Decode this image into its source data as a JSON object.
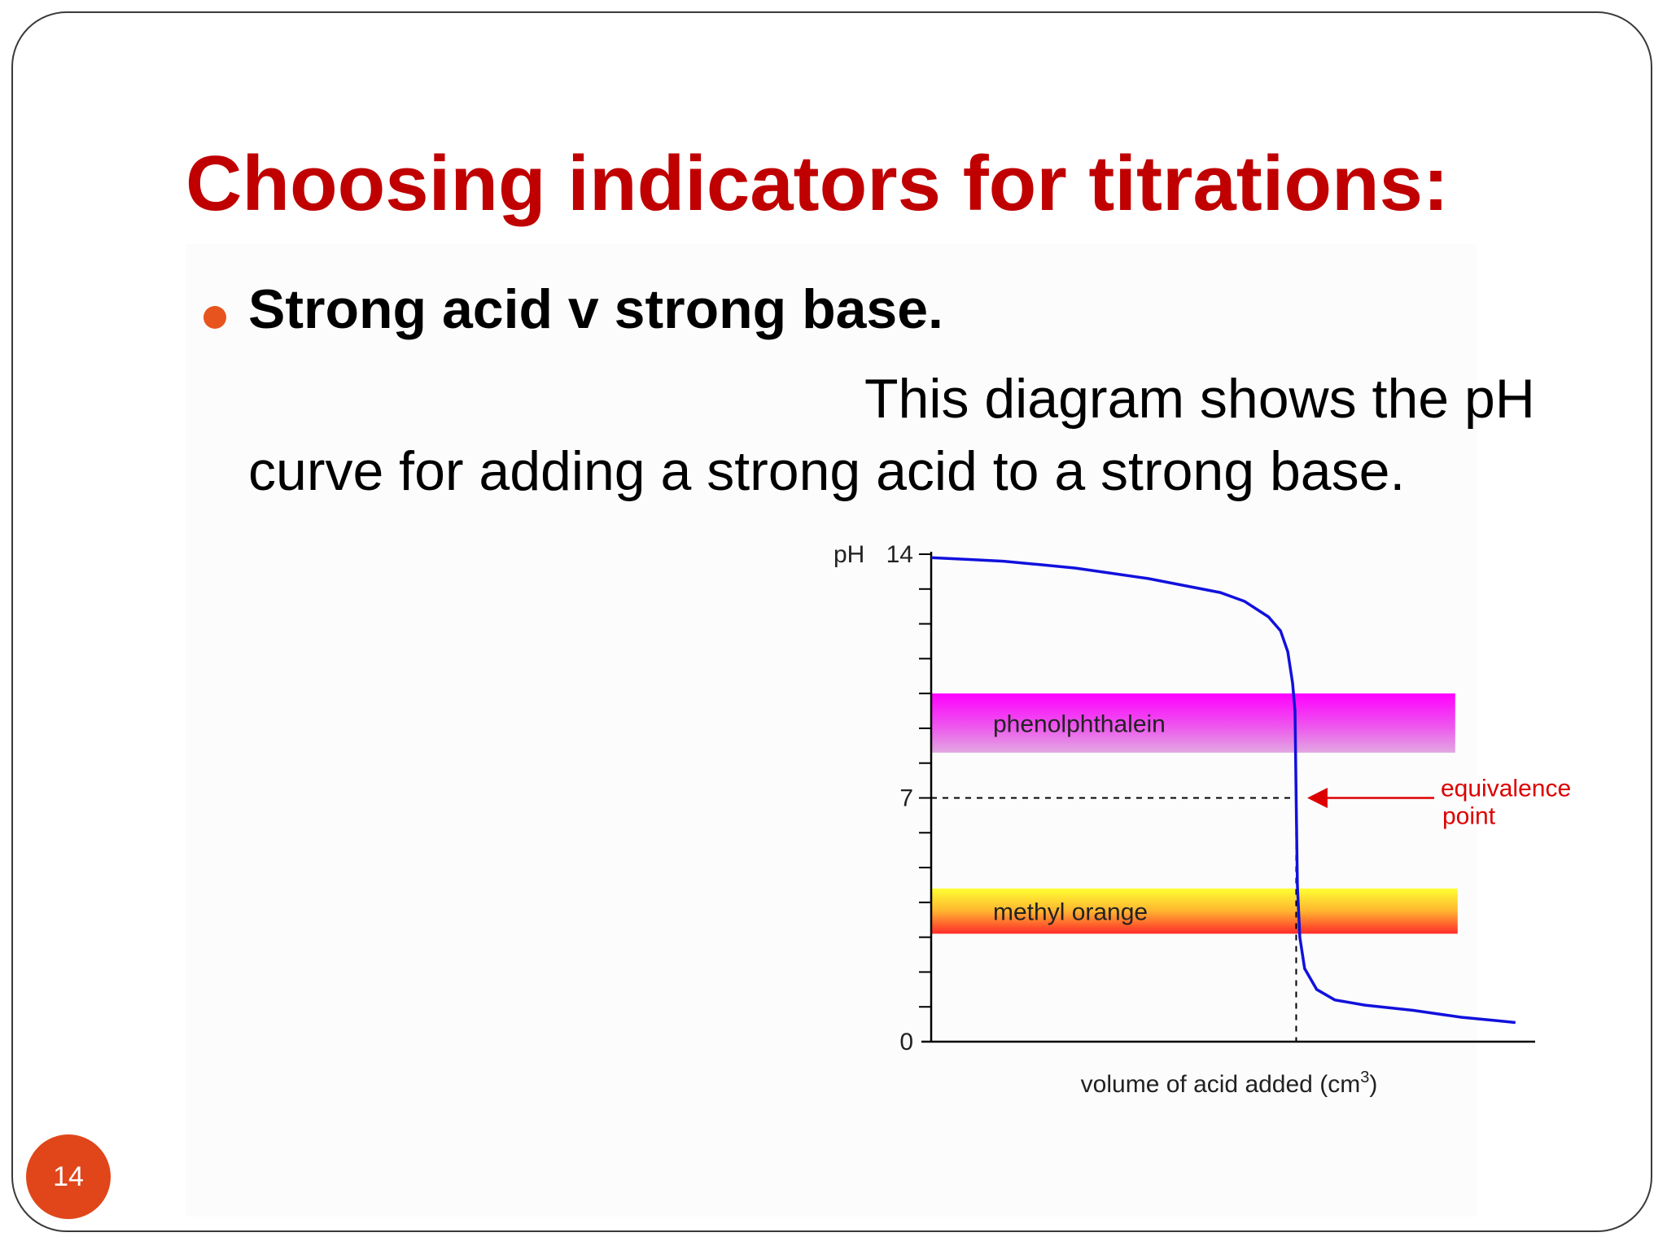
{
  "slide": {
    "title": "Choosing indicators for titrations:",
    "bullet": "Strong acid v strong base.",
    "body_line_1": "This diagram shows the pH",
    "body_line_2": "curve for adding a strong acid to a strong base.",
    "page_number": "14"
  },
  "colors": {
    "title": "#c00000",
    "bullet": "#e8541d",
    "badge": "#e0461a",
    "curve": "#1111dd",
    "annotation": "#dd0000"
  },
  "chart_data": {
    "type": "line",
    "ylabel": "pH",
    "xlabel": "volume of acid added (cm",
    "xlabel_superscript": "3",
    "xlabel_suffix": ")",
    "y_tick_labels": [
      {
        "value": 14,
        "label": "14"
      },
      {
        "value": 7,
        "label": "7"
      },
      {
        "value": 0,
        "label": "0"
      }
    ],
    "ylim": [
      0,
      14
    ],
    "xlim": [
      0,
      50
    ],
    "minor_ticks": [
      1,
      2,
      3,
      4,
      5,
      6,
      7,
      8,
      9,
      10,
      11,
      12,
      13,
      14
    ],
    "series": [
      {
        "points": [
          [
            0,
            13.9
          ],
          [
            3,
            13.85
          ],
          [
            6,
            13.8
          ],
          [
            9,
            13.7
          ],
          [
            12,
            13.6
          ],
          [
            15,
            13.45
          ],
          [
            18,
            13.3
          ],
          [
            21,
            13.1
          ],
          [
            24,
            12.9
          ],
          [
            26,
            12.65
          ],
          [
            28,
            12.2
          ],
          [
            29,
            11.8
          ],
          [
            29.6,
            11.2
          ],
          [
            30.0,
            10.3
          ],
          [
            30.2,
            9.5
          ],
          [
            30.3,
            7.0
          ],
          [
            30.4,
            4.5
          ],
          [
            30.6,
            3.0
          ],
          [
            31.0,
            2.1
          ],
          [
            32.0,
            1.5
          ],
          [
            33.5,
            1.2
          ],
          [
            36,
            1.05
          ],
          [
            40,
            0.9
          ],
          [
            44,
            0.7
          ],
          [
            47,
            0.6
          ],
          [
            48.5,
            0.55
          ]
        ]
      }
    ],
    "equivalence_volume": 30.3,
    "equivalence_ph": 7,
    "indicator_bands": [
      {
        "name": "phenolphthalein",
        "ph_low": 8.3,
        "ph_high": 10.0,
        "x_end": 43.5
      },
      {
        "name": "methyl orange",
        "ph_low": 3.1,
        "ph_high": 4.4,
        "x_end": 43.7
      }
    ],
    "annotation": {
      "text_line_1": "equivalence",
      "text_line_2": "point"
    }
  }
}
